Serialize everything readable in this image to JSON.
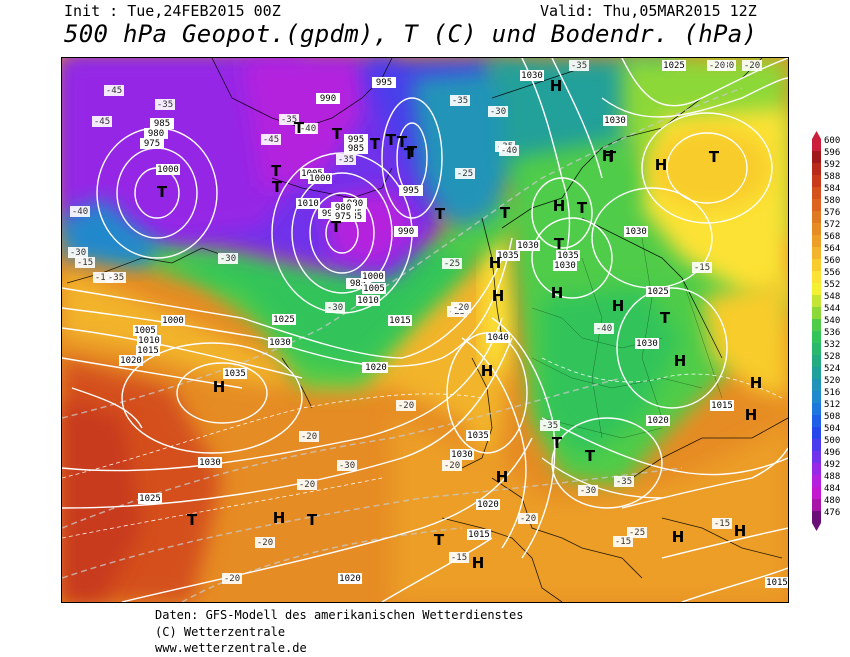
{
  "header": {
    "init": "Init : Tue,24FEB2015 00Z",
    "valid": "Valid: Thu,05MAR2015 12Z",
    "title": "500 hPa Geopot.(gpdm), T (C) und Bodendr. (hPa)"
  },
  "legend": {
    "levels": [
      "600",
      "596",
      "592",
      "588",
      "584",
      "580",
      "576",
      "572",
      "568",
      "564",
      "560",
      "556",
      "552",
      "548",
      "544",
      "540",
      "536",
      "532",
      "528",
      "524",
      "520",
      "516",
      "512",
      "508",
      "504",
      "500",
      "496",
      "492",
      "488",
      "484",
      "480",
      "476"
    ],
    "colors": [
      "#cc1f3c",
      "#a01a1a",
      "#b82a1a",
      "#c83a1a",
      "#d4501c",
      "#dc6420",
      "#e07a22",
      "#e68c24",
      "#ec9e26",
      "#f2b42a",
      "#f8cc2c",
      "#fce234",
      "#f4f034",
      "#c4e436",
      "#8cd838",
      "#50cc4a",
      "#30c45a",
      "#2ab86c",
      "#24ac80",
      "#20a09a",
      "#2094b8",
      "#2088cc",
      "#1c78dc",
      "#2060e8",
      "#2448ec",
      "#4a3cec",
      "#7032ea",
      "#9628e6",
      "#b420de",
      "#c418d0",
      "#a814a8",
      "#6a0e78"
    ]
  },
  "map": {
    "pressure_labels": [
      "1030",
      "1025",
      "1030",
      "995",
      "990",
      "985",
      "980",
      "975",
      "1000",
      "990",
      "995",
      "985",
      "980",
      "975",
      "1005",
      "1010",
      "1000",
      "985",
      "980",
      "975",
      "985",
      "990",
      "995",
      "1000",
      "1005",
      "1010",
      "1015",
      "1020",
      "1025",
      "1030",
      "1035",
      "1000",
      "1005",
      "1010",
      "1015",
      "1030",
      "1035",
      "1040",
      "1030",
      "1035",
      "1030",
      "1020",
      "1035",
      "1030",
      "1025",
      "1030",
      "1020",
      "1020",
      "1015",
      "1015",
      "1020",
      "1015",
      "1030",
      "1025",
      "1020"
    ],
    "temp_labels": [
      "-35",
      "-30",
      "-45",
      "-45",
      "-35",
      "-40",
      "-45",
      "-35",
      "-40",
      "-35",
      "-35",
      "-30",
      "-25",
      "-35",
      "-40",
      "-40",
      "-30",
      "-30",
      "-15",
      "-15",
      "-35",
      "-25",
      "-30",
      "-25",
      "-20",
      "-30",
      "-20",
      "-20",
      "-40",
      "-35",
      "-35",
      "-30",
      "-25",
      "-20",
      "-20",
      "-20",
      "-20",
      "-20",
      "-15",
      "-15",
      "-15",
      "-20",
      "-20",
      "-15"
    ],
    "highs": [
      "H",
      "H",
      "H",
      "H",
      "H",
      "H",
      "H",
      "H",
      "H",
      "H",
      "H",
      "H",
      "H",
      "H",
      "H",
      "H",
      "H",
      "H"
    ],
    "lows": [
      "T",
      "T",
      "T",
      "T",
      "T",
      "T",
      "T",
      "T",
      "T",
      "T",
      "T",
      "T",
      "T",
      "T",
      "T",
      "T",
      "T",
      "T",
      "T",
      "T",
      "T",
      "T",
      "T"
    ]
  },
  "footer": {
    "line1": "Daten: GFS-Modell des amerikanischen Wetterdienstes",
    "line2": "(C) Wetterzentrale",
    "line3": "www.wetterzentrale.de"
  }
}
